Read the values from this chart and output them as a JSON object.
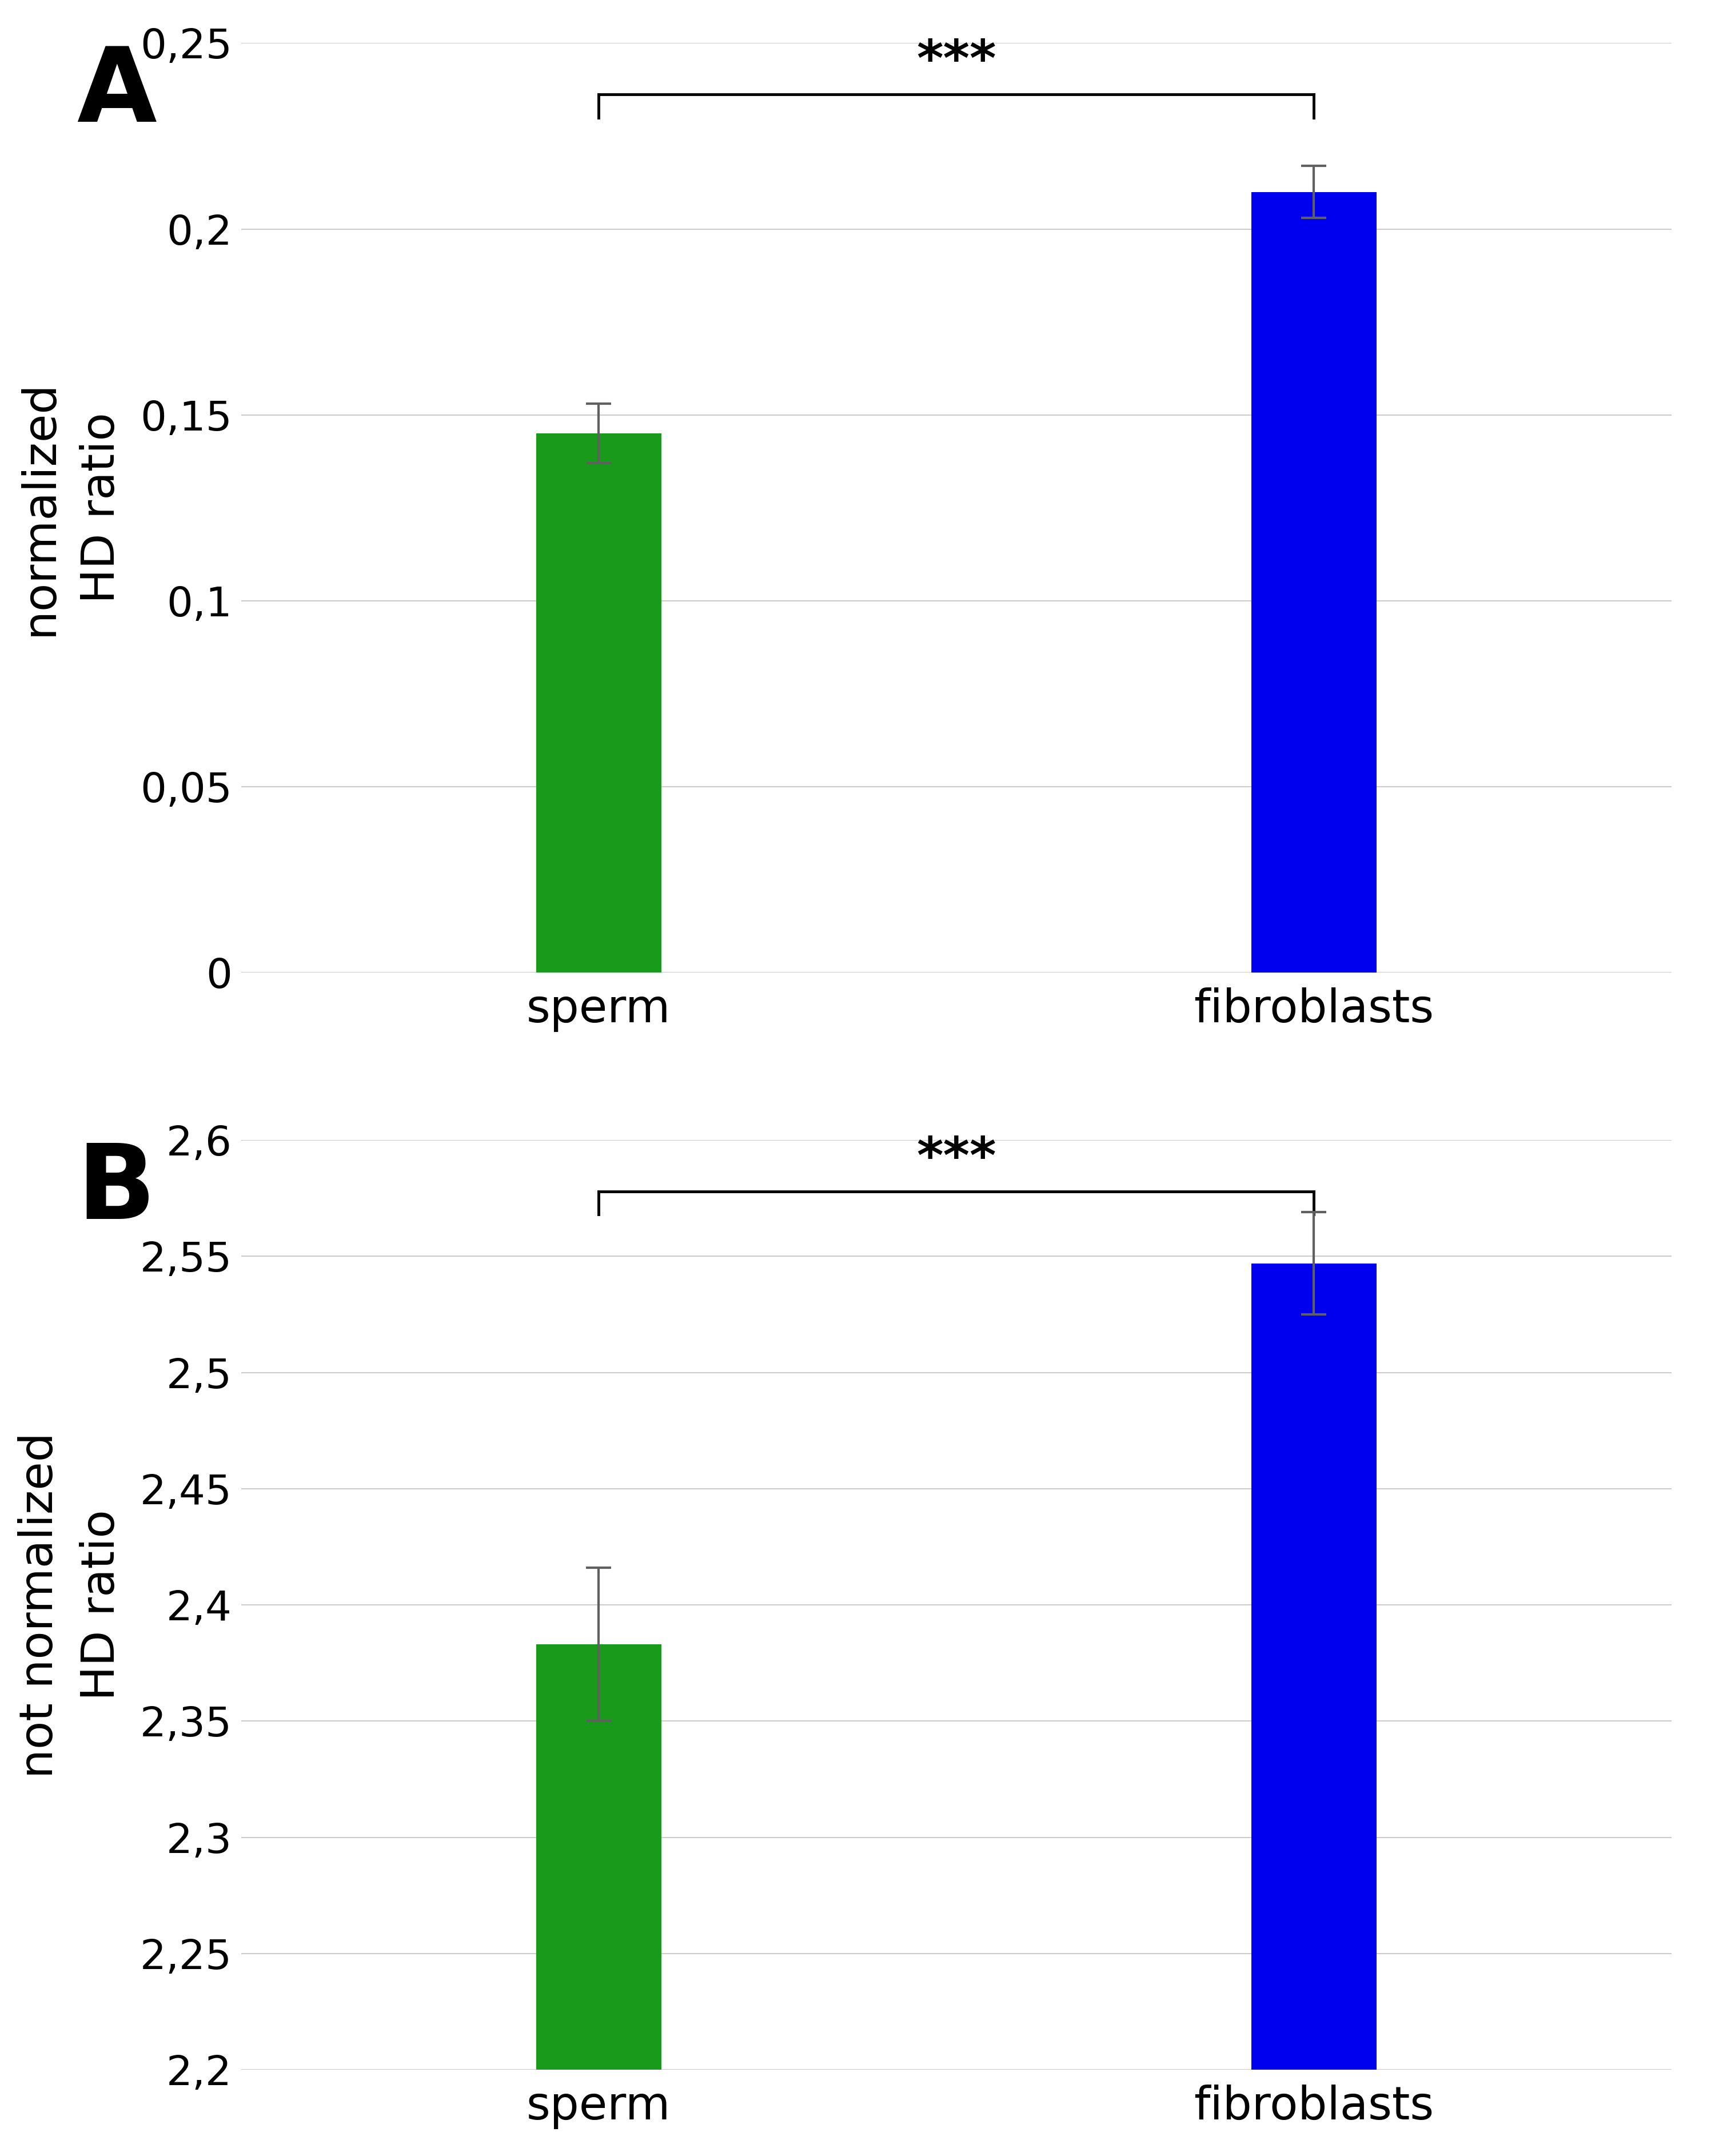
{
  "panel_A": {
    "categories": [
      "sperm",
      "fibroblasts"
    ],
    "values": [
      0.145,
      0.21
    ],
    "errors": [
      0.008,
      0.007
    ],
    "colors": [
      "#1a9a1a",
      "#0000ee"
    ],
    "ylabel": "normalized\nHD ratio",
    "ylim": [
      0,
      0.25
    ],
    "yticks": [
      0,
      0.05,
      0.1,
      0.15,
      0.2,
      0.25
    ],
    "ytick_labels": [
      "0",
      "0,05",
      "0,1",
      "0,15",
      "0,2",
      "0,25"
    ],
    "significance": "***",
    "panel_label": "A"
  },
  "panel_B": {
    "categories": [
      "sperm",
      "fibroblasts"
    ],
    "values": [
      2.383,
      2.547
    ],
    "errors": [
      0.033,
      0.022
    ],
    "colors": [
      "#1a9a1a",
      "#0000ee"
    ],
    "ylabel": "not normalized\nHD ratio",
    "ylim": [
      2.2,
      2.6
    ],
    "yticks": [
      2.2,
      2.25,
      2.3,
      2.35,
      2.4,
      2.45,
      2.5,
      2.55,
      2.6
    ],
    "ytick_labels": [
      "2,2",
      "2,25",
      "2,3",
      "2,35",
      "2,4",
      "2,45",
      "2,5",
      "2,55",
      "2,6"
    ],
    "significance": "***",
    "panel_label": "B"
  },
  "bar_width": 0.35,
  "x_positions": [
    1,
    3
  ],
  "xlim": [
    0,
    4
  ],
  "background_color": "#ffffff",
  "grid_color": "#cccccc",
  "errorbar_color": "#606060",
  "tick_fontsize": 52,
  "label_fontsize": 58,
  "panel_label_fontsize": 130,
  "sig_fontsize": 64,
  "xticklabel_fontsize": 58
}
